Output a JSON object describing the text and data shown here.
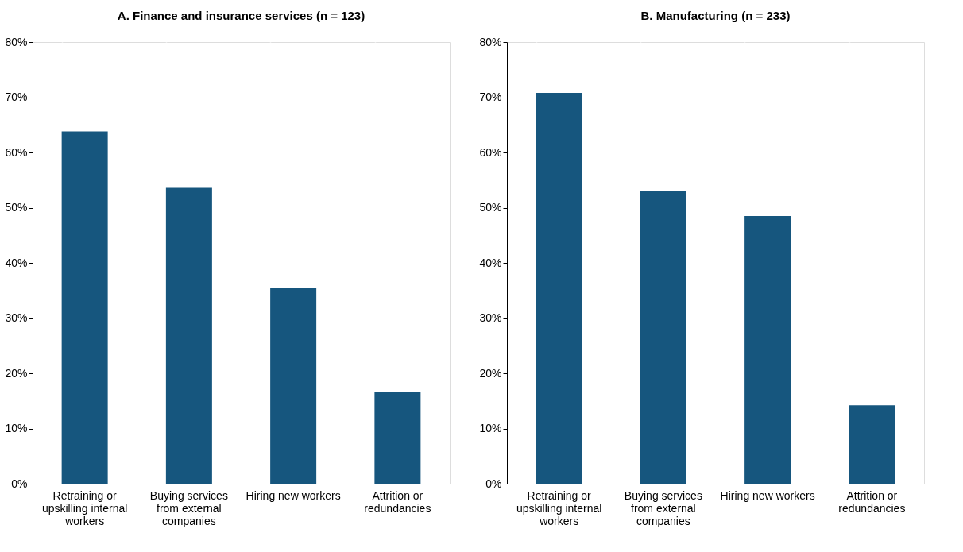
{
  "chart_data": [
    {
      "type": "bar",
      "title": "A. Finance and insurance services (n = 123)",
      "categories": [
        "Retraining or upskilling internal workers",
        "Buying services from external companies",
        "Hiring new workers",
        "Attrition or redundancies"
      ],
      "values": [
        63.8,
        53.6,
        35.4,
        16.6
      ],
      "color": "#16567e",
      "ylim": [
        0,
        80
      ],
      "yticks": [
        {
          "value": 0,
          "label": "0%"
        },
        {
          "value": 10,
          "label": "10%"
        },
        {
          "value": 20,
          "label": "20%"
        },
        {
          "value": 30,
          "label": "30%"
        },
        {
          "value": 40,
          "label": "40%"
        },
        {
          "value": 50,
          "label": "50%"
        },
        {
          "value": 60,
          "label": "60%"
        },
        {
          "value": 70,
          "label": "70%"
        },
        {
          "value": 80,
          "label": "80%"
        }
      ],
      "grid": "x"
    },
    {
      "type": "bar",
      "title": "B. Manufacturing (n = 233)",
      "categories": [
        "Retraining or upskilling internal workers",
        "Buying services from external companies",
        "Hiring new workers",
        "Attrition or redundancies"
      ],
      "values": [
        70.8,
        53.0,
        48.5,
        14.2
      ],
      "color": "#16567e",
      "ylim": [
        0,
        80
      ],
      "yticks": [
        {
          "value": 0,
          "label": "0%"
        },
        {
          "value": 10,
          "label": "10%"
        },
        {
          "value": 20,
          "label": "20%"
        },
        {
          "value": 30,
          "label": "30%"
        },
        {
          "value": 40,
          "label": "40%"
        },
        {
          "value": 50,
          "label": "50%"
        },
        {
          "value": 60,
          "label": "60%"
        },
        {
          "value": 70,
          "label": "70%"
        },
        {
          "value": 80,
          "label": "80%"
        }
      ],
      "grid": "x"
    }
  ]
}
